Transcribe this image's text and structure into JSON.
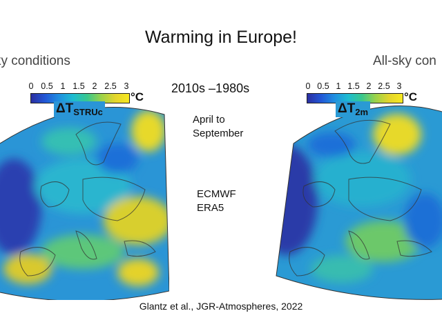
{
  "slide": {
    "title": "Warming in Europe!",
    "left_heading": "ky conditions",
    "right_heading": "All-sky con",
    "period": "2010s –1980s",
    "season_line1": "April to",
    "season_line2": "September",
    "dataset_line1": "ECMWF",
    "dataset_line2": "ERA5",
    "citation": "Glantz et al., JGR-Atmospheres, 2022"
  },
  "colorbar": {
    "ticks": [
      "0",
      "0.5",
      "1",
      "1.5",
      "2",
      "2.5",
      "3"
    ],
    "unit": "°C",
    "colors": [
      "#2b2fa1",
      "#2257d6",
      "#1f8fe0",
      "#1dbcd0",
      "#39c78e",
      "#9ad24a",
      "#e3d52c",
      "#f7e820"
    ]
  },
  "maps": {
    "left": {
      "delta": "ΔT",
      "subscript": "STRUc"
    },
    "right": {
      "delta": "ΔT",
      "subscript": "2m"
    }
  }
}
